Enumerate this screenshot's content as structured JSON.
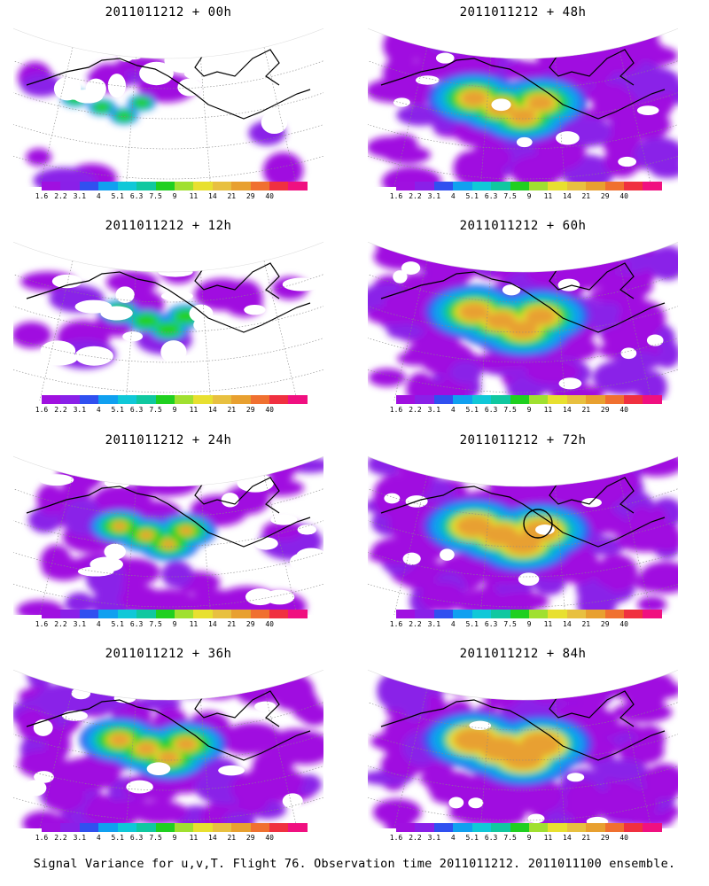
{
  "panels": [
    {
      "title": "2011011212 + 00h",
      "lead_hours": 0,
      "spread": 0.22,
      "hot": 0.0,
      "marker": false
    },
    {
      "title": "2011011212 + 12h",
      "lead_hours": 12,
      "spread": 0.35,
      "hot": 0.05,
      "marker": false
    },
    {
      "title": "2011011212 + 24h",
      "lead_hours": 24,
      "spread": 0.55,
      "hot": 0.15,
      "marker": false
    },
    {
      "title": "2011011212 + 36h",
      "lead_hours": 36,
      "spread": 0.75,
      "hot": 0.3,
      "marker": false
    },
    {
      "title": "2011011212 + 48h",
      "lead_hours": 48,
      "spread": 0.88,
      "hot": 0.42,
      "marker": false
    },
    {
      "title": "2011011212 + 60h",
      "lead_hours": 60,
      "spread": 0.93,
      "hot": 0.5,
      "marker": false
    },
    {
      "title": "2011011212 + 72h",
      "lead_hours": 72,
      "spread": 0.96,
      "hot": 0.62,
      "marker": true
    },
    {
      "title": "2011011212 + 84h",
      "lead_hours": 84,
      "spread": 0.98,
      "hot": 0.72,
      "marker": false
    }
  ],
  "colorbar": {
    "colors": [
      "#a010e0",
      "#8a20e8",
      "#3050f0",
      "#10a0f0",
      "#10c8d8",
      "#10c8a0",
      "#20d020",
      "#a0e030",
      "#e8e030",
      "#e8c040",
      "#e8a030",
      "#f07030",
      "#f03040",
      "#f01080"
    ],
    "tick_labels": [
      "1.6",
      "2.2",
      "3.1",
      "4",
      "5.1",
      "6.3",
      "7.5",
      "9",
      "11",
      "14",
      "21",
      "29",
      "40"
    ]
  },
  "caption": "Signal Variance for u,v,T. Flight 76. Observation time 2011011212. 2011011100 ensemble."
}
